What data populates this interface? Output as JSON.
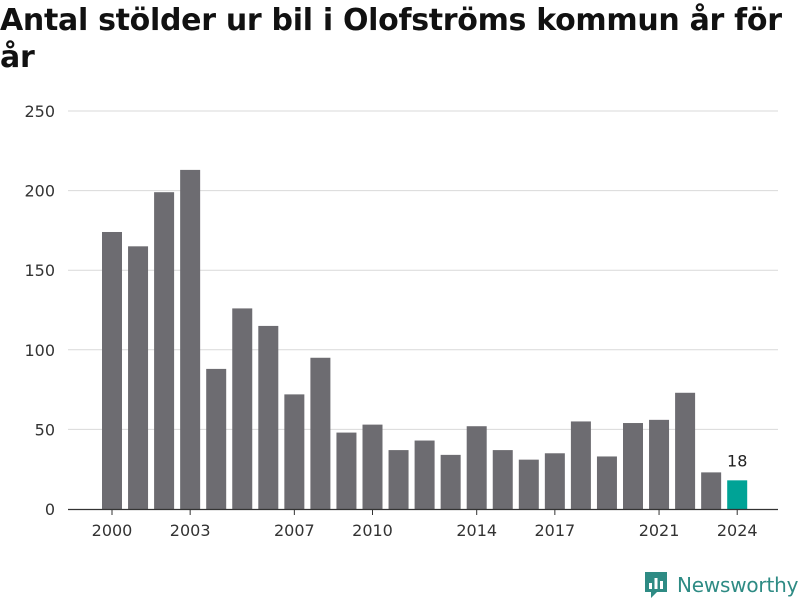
{
  "title": "Antal stölder ur bil i Olofströms kommun år för år",
  "brand": {
    "name": "Newsworthy",
    "logo_icon": "newsworthy-logo-icon",
    "color": "#2e8b84"
  },
  "colors": {
    "bar": "#6d6c71",
    "highlight": "#00a396",
    "grid": "#d9d9d9",
    "axis": "#333333"
  },
  "chart_data": {
    "type": "bar",
    "title": "Antal stölder ur bil i Olofströms kommun år för år",
    "categories": [
      2000,
      2001,
      2002,
      2003,
      2004,
      2005,
      2006,
      2007,
      2008,
      2009,
      2010,
      2011,
      2012,
      2013,
      2014,
      2015,
      2016,
      2017,
      2018,
      2019,
      2020,
      2021,
      2022,
      2023,
      2024
    ],
    "values": [
      174,
      165,
      199,
      213,
      88,
      126,
      115,
      72,
      95,
      48,
      53,
      37,
      43,
      34,
      52,
      37,
      31,
      35,
      55,
      33,
      54,
      56,
      73,
      23,
      18
    ],
    "highlight": {
      "category": 2024,
      "label": "18"
    },
    "x_tick_labels": [
      "2000",
      "2003",
      "2007",
      "2010",
      "2014",
      "2017",
      "2021",
      "2024"
    ],
    "y_ticks": [
      0,
      50,
      100,
      150,
      200,
      250
    ],
    "ylim": [
      0,
      250
    ],
    "xlabel": "",
    "ylabel": "",
    "grid": "horizontal"
  }
}
